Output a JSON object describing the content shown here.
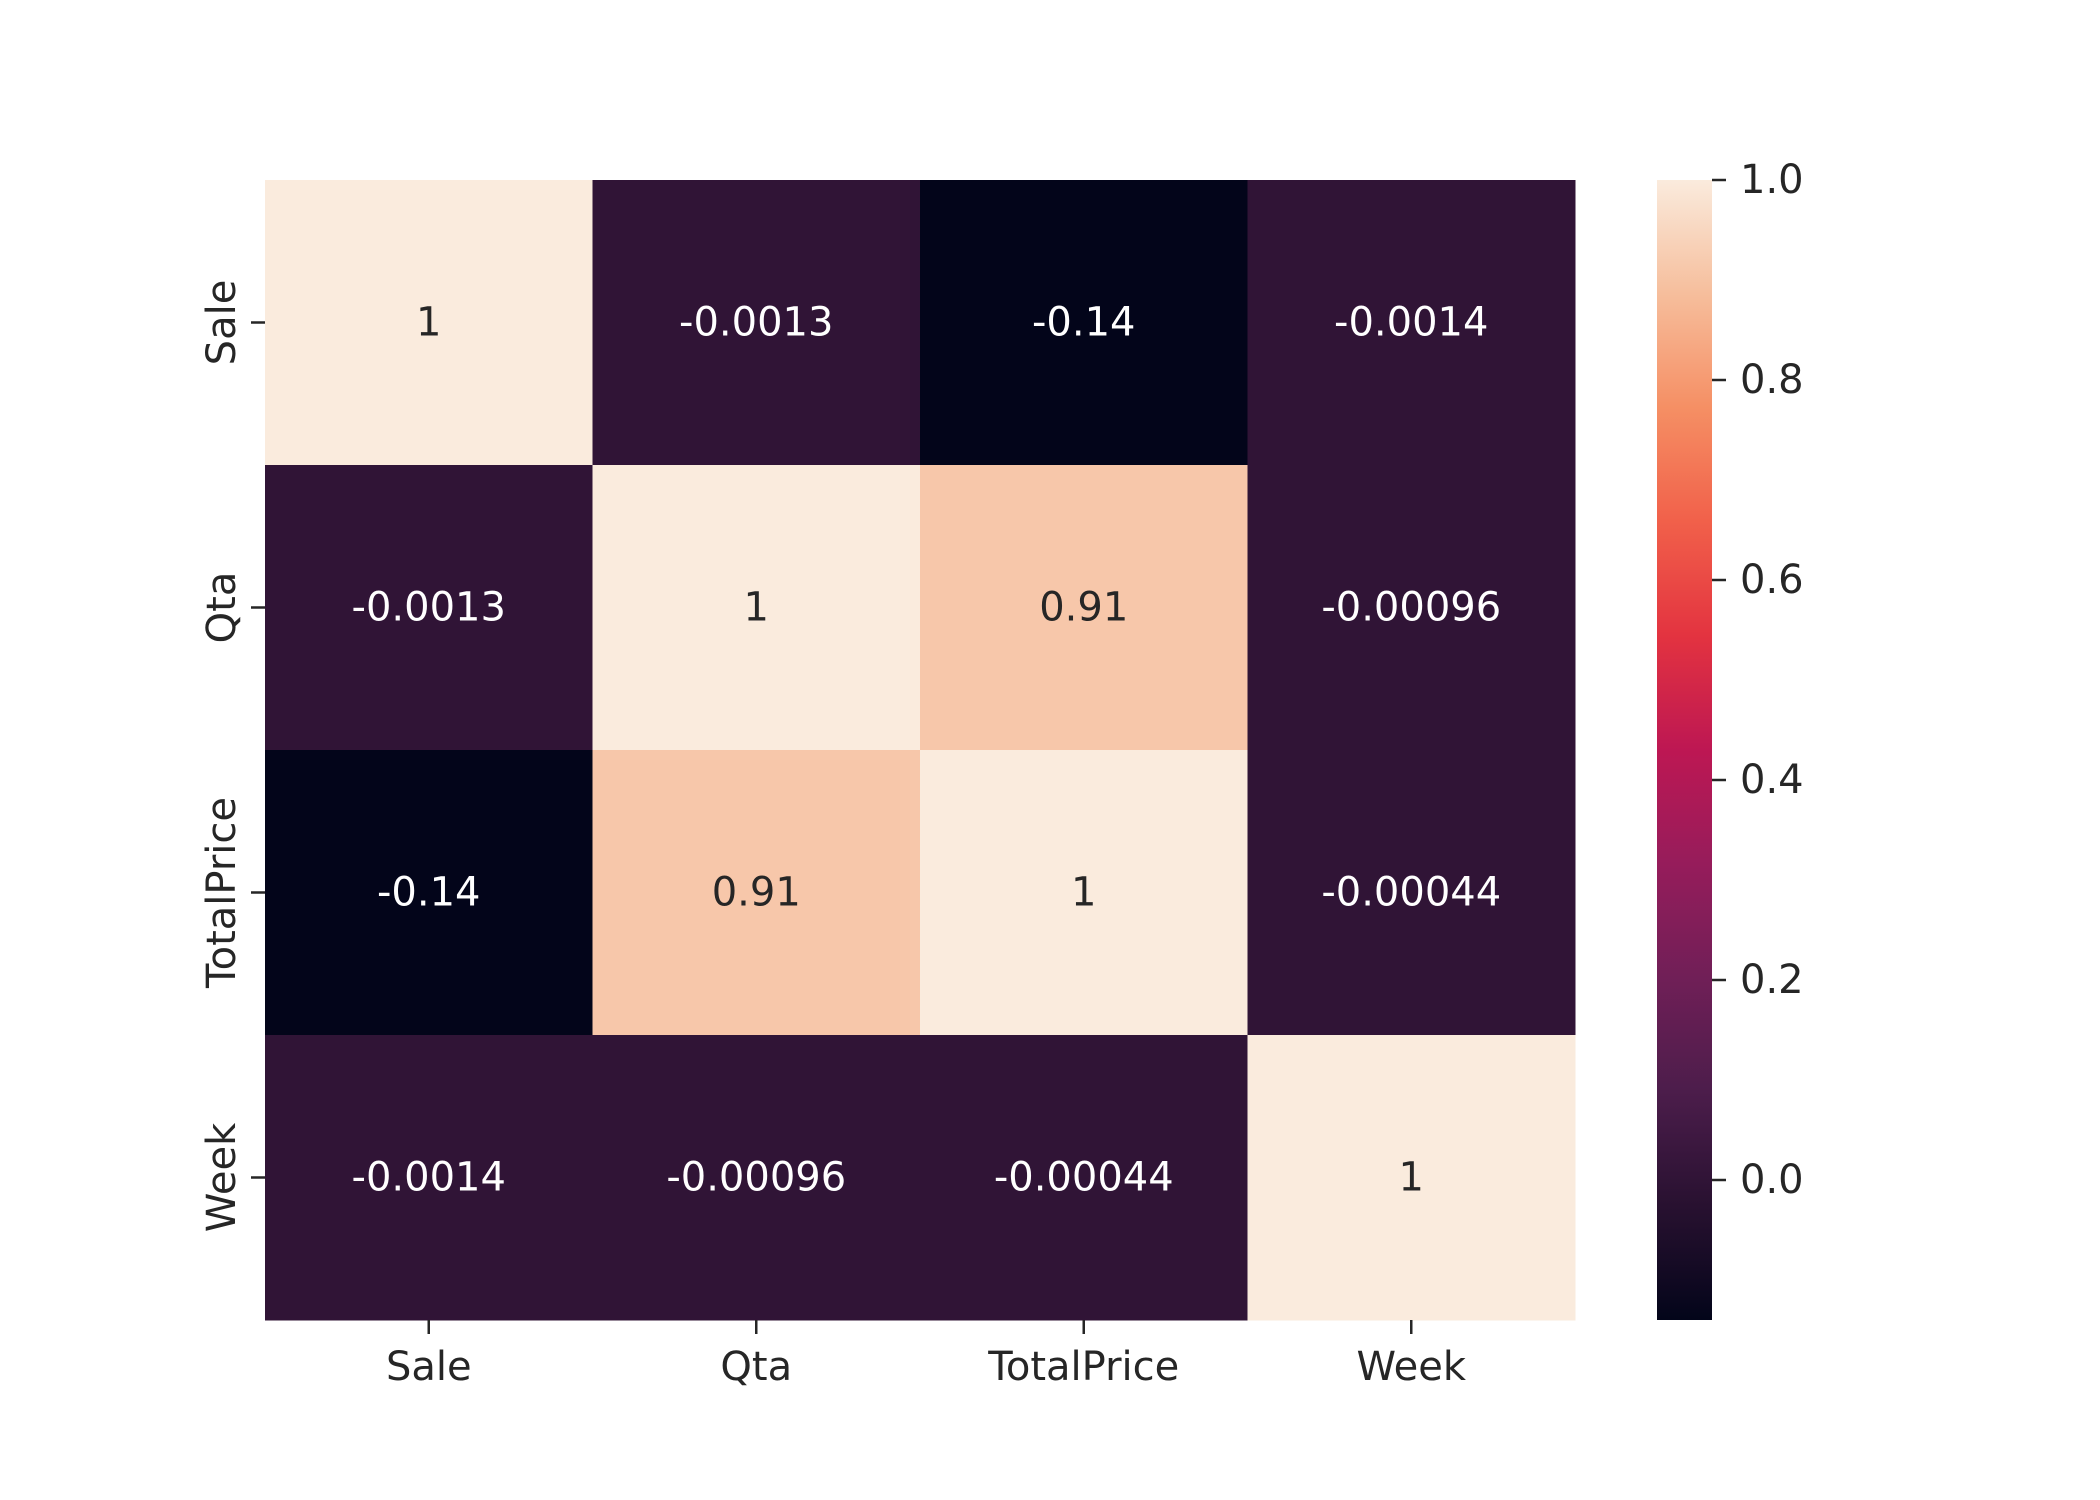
{
  "chart_data": {
    "type": "heatmap",
    "title": "",
    "xlabel": "",
    "ylabel": "",
    "x_labels": [
      "Sale",
      "Qta",
      "TotalPrice",
      "Week"
    ],
    "y_labels": [
      "Sale",
      "Qta",
      "TotalPrice",
      "Week"
    ],
    "values": [
      [
        1,
        -0.0013,
        -0.14,
        -0.0014
      ],
      [
        -0.0013,
        1,
        0.91,
        -0.00096
      ],
      [
        -0.14,
        0.91,
        1,
        -0.00044
      ],
      [
        -0.0014,
        -0.00096,
        -0.00044,
        1
      ]
    ],
    "annotations": [
      [
        "1",
        "-0.0013",
        "-0.14",
        "-0.0014"
      ],
      [
        "-0.0013",
        "1",
        "0.91",
        "-0.00096"
      ],
      [
        "-0.14",
        "0.91",
        "1",
        "-0.00044"
      ],
      [
        "-0.0014",
        "-0.00096",
        "-0.00044",
        "1"
      ]
    ],
    "colormap": "rocket",
    "colorbar": {
      "vmin": -0.14,
      "vmax": 1.0,
      "ticks": [
        0.0,
        0.2,
        0.4,
        0.6,
        0.8,
        1.0
      ],
      "tick_labels": [
        "0.0",
        "0.2",
        "0.4",
        "0.6",
        "0.8",
        "1.0"
      ]
    },
    "grid": false,
    "legend": "colorbar-right"
  }
}
